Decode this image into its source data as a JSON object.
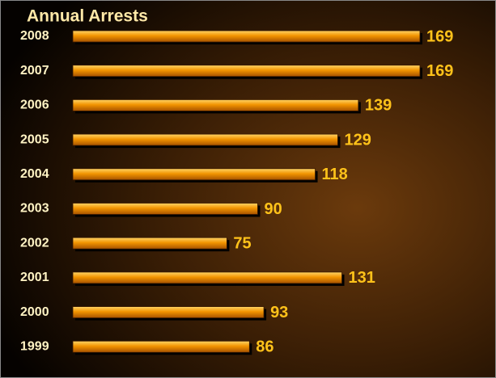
{
  "chart_data": {
    "type": "bar",
    "orientation": "horizontal",
    "title": "Annual Arrests",
    "categories": [
      "2008",
      "2007",
      "2006",
      "2005",
      "2004",
      "2003",
      "2002",
      "2001",
      "2000",
      "1999"
    ],
    "values": [
      169,
      169,
      139,
      129,
      118,
      90,
      75,
      131,
      93,
      86
    ],
    "color": "#f29400"
  }
}
